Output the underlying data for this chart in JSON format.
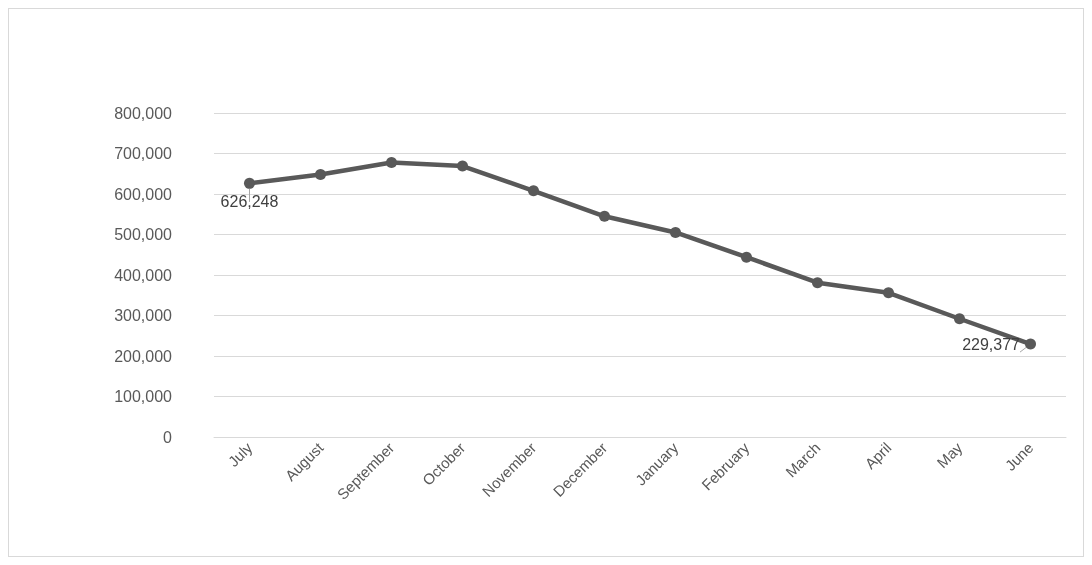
{
  "chart_data": {
    "type": "line",
    "categories": [
      "July",
      "August",
      "September",
      "October",
      "November",
      "December",
      "January",
      "February",
      "March",
      "April",
      "May",
      "June"
    ],
    "series": [
      {
        "color": "#595959",
        "values": [
          626248,
          648000,
          678000,
          669000,
          608000,
          545000,
          505000,
          444000,
          381000,
          356000,
          292000,
          229377
        ],
        "value_labels": [
          "626,248",
          null,
          null,
          null,
          null,
          null,
          null,
          null,
          null,
          null,
          null,
          "229,377"
        ]
      }
    ],
    "ylim": [
      0,
      800000
    ],
    "yticks": [
      0,
      {
        "value": 100000,
        "label": "100,000"
      },
      {
        "value": 200000,
        "label": "200,000"
      },
      {
        "value": 300000,
        "label": "300,000"
      },
      {
        "value": 400000,
        "label": "400,000"
      },
      {
        "value": 500000,
        "label": "500,000"
      },
      {
        "value": 600000,
        "label": "600,000"
      },
      {
        "value": 700000,
        "label": "700,000"
      },
      {
        "value": 800000,
        "label": "800,000"
      }
    ],
    "grid": "y",
    "marker": "circle",
    "line_style": "solid"
  }
}
